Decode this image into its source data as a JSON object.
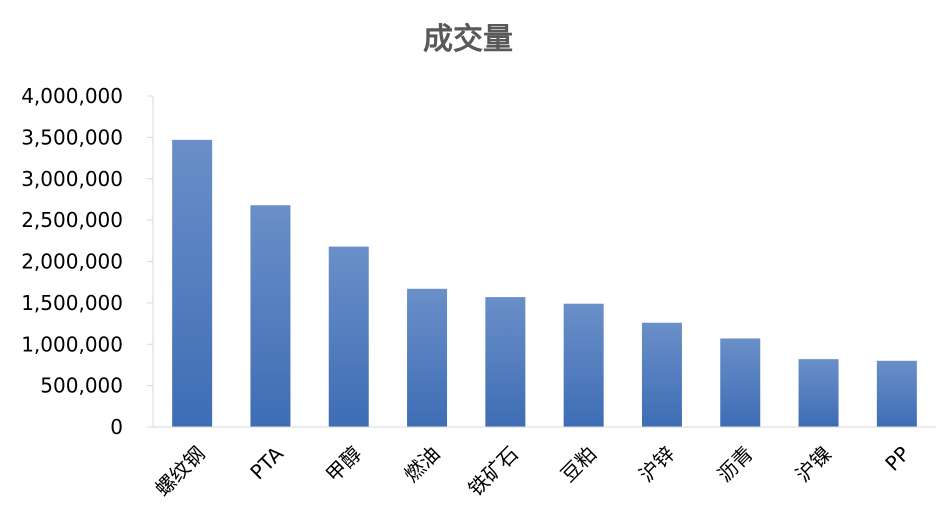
{
  "chart_data": {
    "type": "bar",
    "title": "成交量",
    "categories": [
      "螺纹钢",
      "PTA",
      "甲醇",
      "燃油",
      "铁矿石",
      "豆粕",
      "沪锌",
      "沥青",
      "沪镍",
      "PP"
    ],
    "values": [
      3470000,
      2680000,
      2180000,
      1670000,
      1570000,
      1490000,
      1260000,
      1070000,
      820000,
      800000
    ],
    "ylim": [
      0,
      4000000
    ],
    "yticks": [
      "0",
      "500,000",
      "1,000,000",
      "1,500,000",
      "2,000,000",
      "2,500,000",
      "3,000,000",
      "3,500,000",
      "4,000,000"
    ],
    "xlabel": "",
    "ylabel": "",
    "bar_color_top": "#6a8fc8",
    "bar_color_bottom": "#3e6db5",
    "grid": false,
    "legend": "none"
  }
}
